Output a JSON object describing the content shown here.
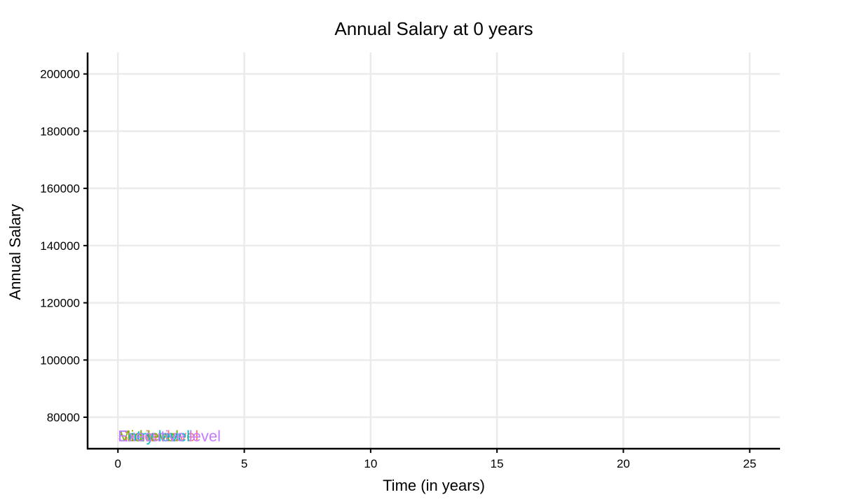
{
  "chart_data": {
    "type": "line",
    "title": "Annual Salary at 0 years",
    "xlabel": "Time (in years)",
    "ylabel": "Annual Salary",
    "xlim": [
      -1.2,
      26.2
    ],
    "ylim": [
      69000,
      207500
    ],
    "x_ticks": [
      0,
      5,
      10,
      15,
      20,
      25
    ],
    "y_ticks": [
      80000,
      100000,
      120000,
      140000,
      160000,
      180000,
      200000
    ],
    "grid": true,
    "series": [
      {
        "name": "Senior level",
        "color": "#f8766d",
        "x": [
          0
        ],
        "values": [
          73500
        ]
      },
      {
        "name": "Mid level",
        "color": "#7cae00",
        "x": [
          0
        ],
        "values": [
          73500
        ]
      },
      {
        "name": "Entry level",
        "color": "#00bfc4",
        "x": [
          0
        ],
        "values": [
          73500
        ]
      },
      {
        "name": "Executive level",
        "color": "#c77cff",
        "x": [
          0
        ],
        "values": [
          73500
        ]
      }
    ]
  }
}
